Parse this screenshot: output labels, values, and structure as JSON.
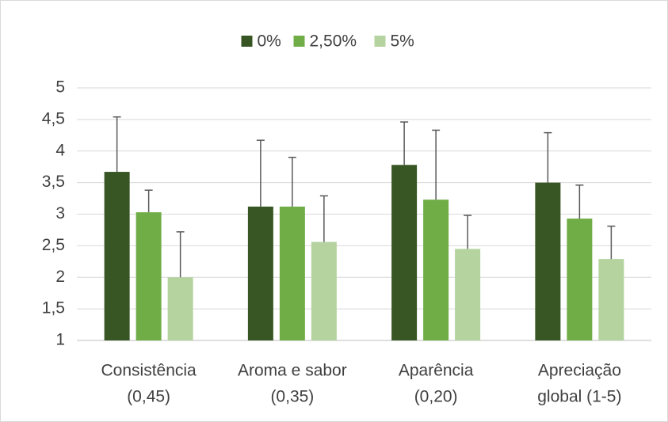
{
  "chart_data": {
    "type": "bar",
    "categories": [
      [
        "Consistência",
        "(0,45)"
      ],
      [
        "Aroma e sabor",
        "(0,35)"
      ],
      [
        "Aparência",
        "(0,20)"
      ],
      [
        "Apreciação",
        "global (1-5)"
      ]
    ],
    "series": [
      {
        "name": "0%",
        "color": "#375623",
        "values": [
          3.67,
          3.12,
          3.78,
          3.5
        ],
        "errors": [
          0.87,
          1.05,
          0.68,
          0.79
        ]
      },
      {
        "name": "2,50%",
        "color": "#70ad47",
        "values": [
          3.03,
          3.12,
          3.23,
          2.93
        ],
        "errors": [
          0.35,
          0.78,
          1.1,
          0.53
        ]
      },
      {
        "name": "5%",
        "color": "#b4d39f",
        "values": [
          2.0,
          2.56,
          2.45,
          2.29
        ],
        "errors": [
          0.72,
          0.73,
          0.53,
          0.52
        ]
      }
    ],
    "ylim": [
      1,
      5
    ],
    "yticks": [
      1,
      {
        "value": 1.5,
        "label": "1,5"
      },
      2,
      {
        "value": 2.5,
        "label": "2,5"
      },
      3,
      {
        "value": 3.5,
        "label": "3,5"
      },
      4,
      {
        "value": 4.5,
        "label": "4,5"
      },
      5
    ],
    "grid": true,
    "legend": "top"
  }
}
